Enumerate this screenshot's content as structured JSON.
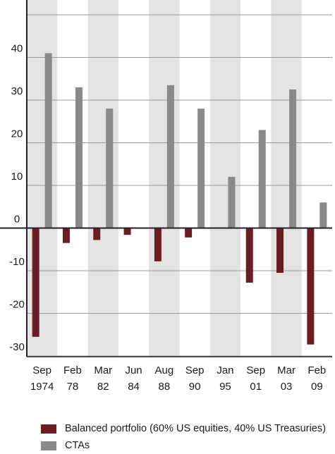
{
  "chart_data": {
    "type": "bar",
    "categories": [
      [
        "Sep",
        "1974"
      ],
      [
        "Feb",
        "78"
      ],
      [
        "Mar",
        "82"
      ],
      [
        "Jun",
        "84"
      ],
      [
        "Aug",
        "88"
      ],
      [
        "Sep",
        "90"
      ],
      [
        "Jan",
        "95"
      ],
      [
        "Sep",
        "01"
      ],
      [
        "Mar",
        "03"
      ],
      [
        "Feb",
        "09"
      ]
    ],
    "series": [
      {
        "name": "Balanced portfolio (60% US equities, 40% US Treasuries)",
        "color": "#6b1d24",
        "values": [
          -25.5,
          -3.5,
          -2.8,
          -1.6,
          -7.8,
          -2.2,
          null,
          -12.8,
          -10.5,
          -27.3
        ]
      },
      {
        "name": "CTAs",
        "color": "#898989",
        "values": [
          41.0,
          33.0,
          28.0,
          null,
          33.5,
          28.0,
          12.0,
          23.0,
          32.5,
          6.0
        ]
      }
    ],
    "yticks": [
      -30,
      -20,
      -10,
      0,
      10,
      20,
      30,
      40
    ],
    "ylim": [
      -30,
      50
    ],
    "grid": true,
    "shaded_bands": [
      0,
      2,
      4,
      6,
      8
    ],
    "band_color": "#e3e3e3",
    "legend_position": "bottom"
  }
}
